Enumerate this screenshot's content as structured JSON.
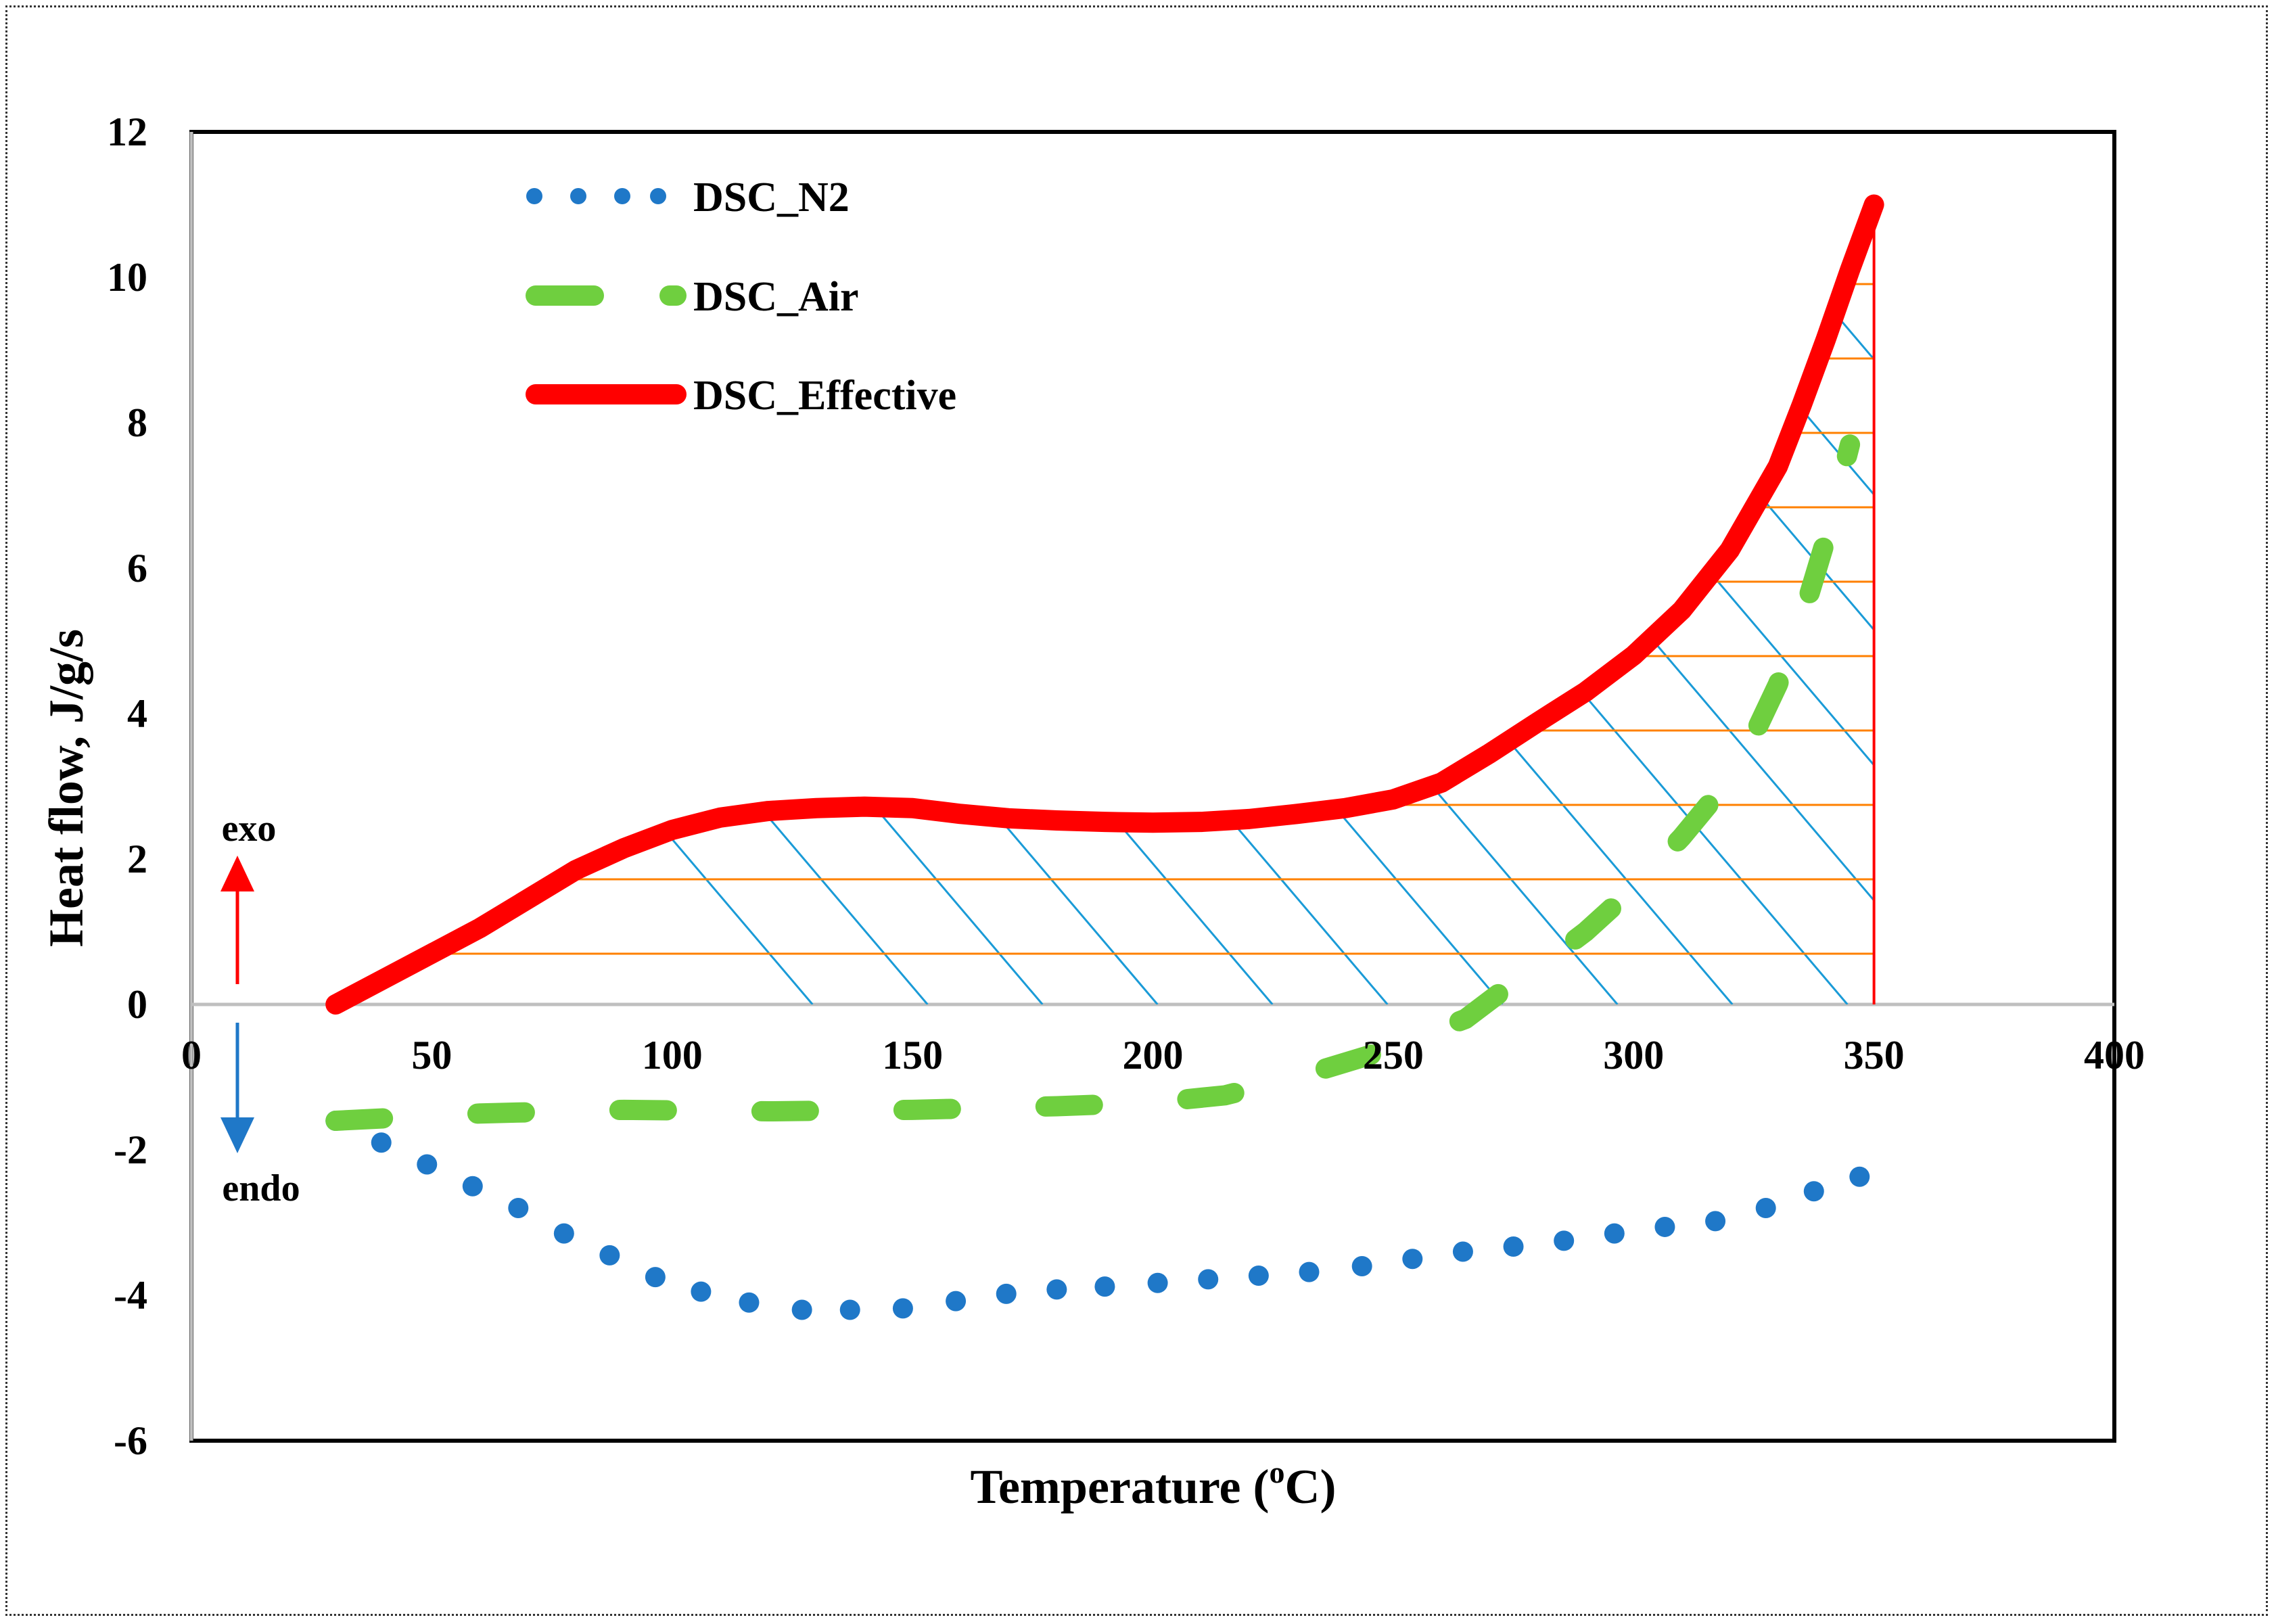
{
  "chart_data": {
    "type": "line",
    "xlabel": "Temperature (oC)",
    "xlabel_main": "Temperature (",
    "xlabel_sup": "o",
    "xlabel_tail": "C)",
    "ylabel": "Heat flow, J/g/s",
    "xlim": [
      0,
      400
    ],
    "ylim": [
      -6,
      12
    ],
    "x_ticks": [
      0,
      50,
      100,
      150,
      200,
      250,
      300,
      350,
      400
    ],
    "y_ticks": [
      -6,
      -4,
      -2,
      0,
      2,
      4,
      6,
      8,
      10,
      12
    ],
    "grid": false,
    "legend_position": "top-left",
    "annotations": {
      "exo": "exo",
      "endo": "endo"
    },
    "series": [
      {
        "name": "DSC_N2",
        "style": "dotted",
        "color": "#1f78c8",
        "x": [
          30,
          39.5,
          49,
          58.5,
          68,
          77.5,
          87,
          96.5,
          106,
          116,
          127,
          137,
          148,
          159,
          169.5,
          180,
          190,
          201,
          211.5,
          222,
          232.5,
          243.5,
          254,
          264.5,
          275,
          285.5,
          296,
          306.5,
          317,
          327.5,
          337.5,
          347
        ],
        "y": [
          -1.6,
          -1.9,
          -2.2,
          -2.5,
          -2.8,
          -3.15,
          -3.45,
          -3.75,
          -3.95,
          -4.1,
          -4.2,
          -4.2,
          -4.18,
          -4.08,
          -3.98,
          -3.92,
          -3.88,
          -3.83,
          -3.78,
          -3.73,
          -3.68,
          -3.6,
          -3.5,
          -3.4,
          -3.33,
          -3.25,
          -3.15,
          -3.06,
          -2.98,
          -2.8,
          -2.57,
          -2.37
        ]
      },
      {
        "name": "DSC_Air",
        "style": "dashed",
        "color": "#6fcf3f",
        "x": [
          30,
          60,
          90,
          120,
          150,
          180,
          200,
          215,
          230,
          245,
          255,
          265,
          272,
          280,
          290,
          300,
          310,
          320,
          325,
          330,
          335,
          340,
          345
        ],
        "y": [
          -1.6,
          -1.5,
          -1.45,
          -1.47,
          -1.45,
          -1.4,
          -1.35,
          -1.25,
          -1.0,
          -0.7,
          -0.45,
          -0.2,
          0.15,
          0.5,
          1.0,
          1.6,
          2.3,
          3.1,
          3.7,
          4.4,
          5.3,
          6.4,
          7.7
        ]
      },
      {
        "name": "DSC_Effective",
        "style": "solid",
        "color": "#ff0000",
        "x": [
          30,
          40,
          50,
          60,
          70,
          80,
          90,
          100,
          110,
          120,
          130,
          140,
          150,
          160,
          170,
          180,
          190,
          200,
          210,
          220,
          230,
          240,
          250,
          260,
          270,
          280,
          290,
          300,
          310,
          320,
          330,
          335,
          340,
          345,
          350
        ],
        "y": [
          0.0,
          0.35,
          0.7,
          1.05,
          1.45,
          1.85,
          2.15,
          2.4,
          2.57,
          2.66,
          2.7,
          2.72,
          2.7,
          2.62,
          2.56,
          2.53,
          2.51,
          2.5,
          2.51,
          2.55,
          2.62,
          2.7,
          2.82,
          3.05,
          3.45,
          3.88,
          4.3,
          4.8,
          5.42,
          6.25,
          7.4,
          8.25,
          9.15,
          10.1,
          11.0
        ]
      }
    ],
    "fill_region": {
      "type": "hatched",
      "between": [
        "DSC_Effective",
        "zero"
      ],
      "x_range": [
        30,
        350
      ],
      "diagonal_color": "#1a9bd7",
      "horizontal_color": "#ff8000"
    }
  }
}
